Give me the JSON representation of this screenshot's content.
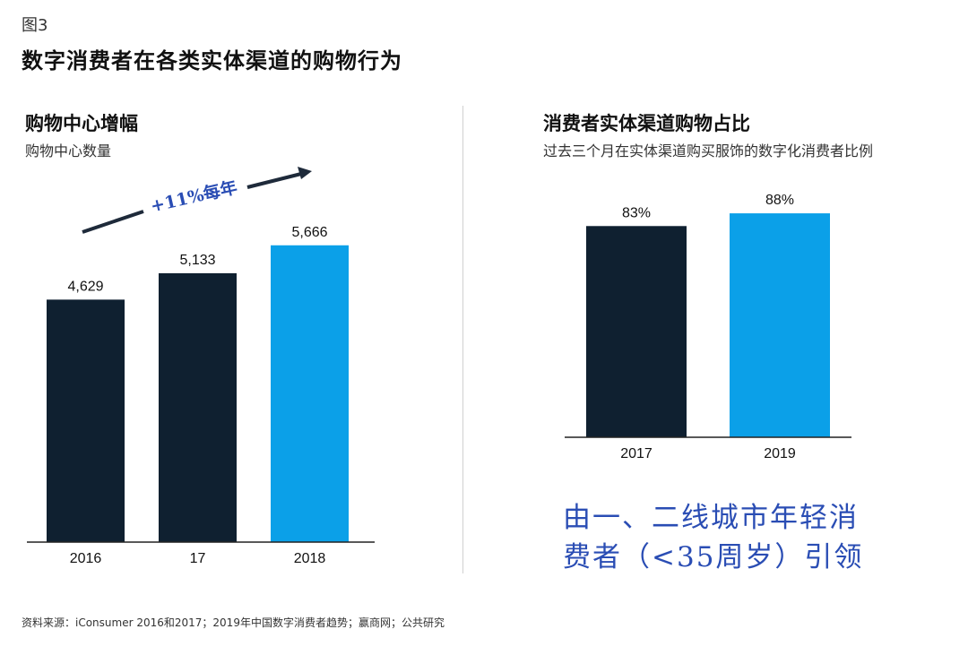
{
  "figure_label": "图3",
  "title": "数字消费者在各类实体渠道的购物行为",
  "left_panel": {
    "title": "购物中心增幅",
    "subtitle": "购物中心数量",
    "annotation": "+11%每年"
  },
  "right_panel": {
    "title": "消费者实体渠道购物占比",
    "subtitle": "过去三个月在实体渠道购买服饰的数字化消费者比例",
    "callout_line1": "由一、二线城市年轻消",
    "callout_line2": "费者（<35周岁）引领"
  },
  "source": "资料来源：iConsumer 2016和2017；2019年中国数字消费者趋势；赢商网；公共研究",
  "colors": {
    "dark": "#0f2030",
    "accent": "#0ba0e8",
    "annotation": "#2a4db4"
  },
  "chart_data": [
    {
      "type": "bar",
      "title": "购物中心增幅",
      "subtitle": "购物中心数量",
      "categories": [
        "2016",
        "17",
        "2018"
      ],
      "values": [
        4629,
        5133,
        5666
      ],
      "value_labels": [
        "4,629",
        "5,133",
        "5,666"
      ],
      "bar_colors": [
        "#0f2030",
        "#0f2030",
        "#0ba0e8"
      ],
      "ylim": [
        0,
        6500
      ],
      "grid": false
    },
    {
      "type": "bar",
      "title": "消费者实体渠道购物占比",
      "subtitle": "过去三个月在实体渠道购买服饰的数字化消费者比例",
      "categories": [
        "2017",
        "2019"
      ],
      "values": [
        83,
        88
      ],
      "value_labels": [
        "83%",
        "88%"
      ],
      "bar_colors": [
        "#0f2030",
        "#0ba0e8"
      ],
      "ylim": [
        0,
        100
      ],
      "grid": false
    }
  ]
}
